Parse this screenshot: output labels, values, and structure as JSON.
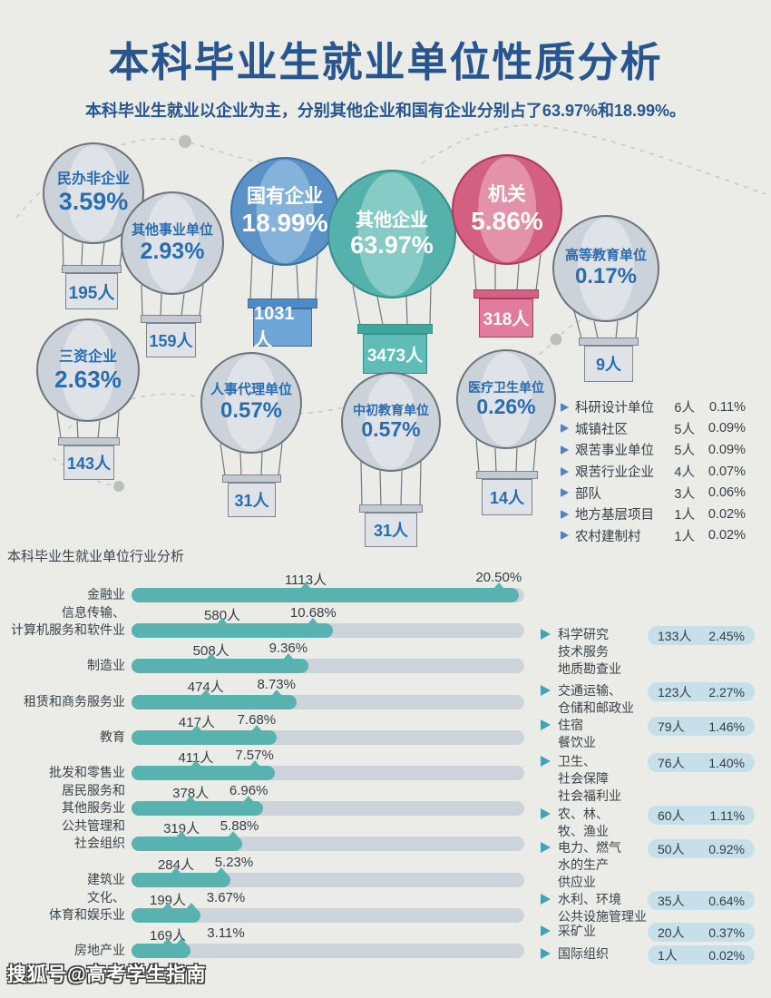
{
  "header": {
    "title": "本科毕业生就业单位性质分析",
    "subtitle": "本科毕业生就业以企业为主，分别其他企业和国有企业分别占了63.97%和18.99%。"
  },
  "balloons": [
    {
      "name": "民办非企业",
      "pct": "3.59%",
      "count": "195人"
    },
    {
      "name": "其他事业单位",
      "pct": "2.93%",
      "count": "159人"
    },
    {
      "name": "国有企业",
      "pct": "18.99%",
      "count": "1031人"
    },
    {
      "name": "其他企业",
      "pct": "63.97%",
      "count": "3473人"
    },
    {
      "name": "机关",
      "pct": "5.86%",
      "count": "318人"
    },
    {
      "name": "高等教育单位",
      "pct": "0.17%",
      "count": "9人"
    },
    {
      "name": "三资企业",
      "pct": "2.63%",
      "count": "143人"
    },
    {
      "name": "人事代理单位",
      "pct": "0.57%",
      "count": "31人"
    },
    {
      "name": "中初教育单位",
      "pct": "0.57%",
      "count": "31人"
    },
    {
      "name": "医疗卫生单位",
      "pct": "0.26%",
      "count": "14人"
    }
  ],
  "stats_list": [
    {
      "label": "科研设计单位",
      "count": "6人",
      "pct": "0.11%"
    },
    {
      "label": "城镇社区",
      "count": "5人",
      "pct": "0.09%"
    },
    {
      "label": "艰苦事业单位",
      "count": "5人",
      "pct": "0.09%"
    },
    {
      "label": "艰苦行业企业",
      "count": "4人",
      "pct": "0.07%"
    },
    {
      "label": "部队",
      "count": "3人",
      "pct": "0.06%"
    },
    {
      "label": "地方基层项目",
      "count": "1人",
      "pct": "0.02%"
    },
    {
      "label": "农村建制村",
      "count": "1人",
      "pct": "0.02%"
    }
  ],
  "industry_chart": {
    "section_title": "本科毕业生就业单位行业分析",
    "bars": [
      {
        "label": "金融业",
        "count": "1113人",
        "pct": "20.50%",
        "pct_num": 20.5
      },
      {
        "label": "信息传输、\n计算机服务和软件业",
        "count": "580人",
        "pct": "10.68%",
        "pct_num": 10.68
      },
      {
        "label": "制造业",
        "count": "508人",
        "pct": "9.36%",
        "pct_num": 9.36
      },
      {
        "label": "租赁和商务服务业",
        "count": "474人",
        "pct": "8.73%",
        "pct_num": 8.73
      },
      {
        "label": "教育",
        "count": "417人",
        "pct": "7.68%",
        "pct_num": 7.68
      },
      {
        "label": "批发和零售业",
        "count": "411人",
        "pct": "7.57%",
        "pct_num": 7.57
      },
      {
        "label": "居民服务和\n其他服务业",
        "count": "378人",
        "pct": "6.96%",
        "pct_num": 6.96
      },
      {
        "label": "公共管理和\n社会组织",
        "count": "319人",
        "pct": "5.88%",
        "pct_num": 5.88
      },
      {
        "label": "建筑业",
        "count": "284人",
        "pct": "5.23%",
        "pct_num": 5.23
      },
      {
        "label": "文化、\n体育和娱乐业",
        "count": "199人",
        "pct": "3.67%",
        "pct_num": 3.67
      },
      {
        "label": "房地产业",
        "count": "169人",
        "pct": "3.11%",
        "pct_num": 3.11
      }
    ],
    "side_items": [
      {
        "label": "科学研究\n技术服务\n地质勘查业",
        "count": "133人",
        "pct": "2.45%"
      },
      {
        "label": "交通运输、\n仓储和邮政业",
        "count": "123人",
        "pct": "2.27%"
      },
      {
        "label": "住宿\n餐饮业",
        "count": "79人",
        "pct": "1.46%"
      },
      {
        "label": "卫生、\n社会保障\n社会福利业",
        "count": "76人",
        "pct": "1.40%"
      },
      {
        "label": "农、林、\n牧、渔业",
        "count": "60人",
        "pct": "1.11%"
      },
      {
        "label": "电力、燃气\n水的生产\n供应业",
        "count": "50人",
        "pct": "0.92%"
      },
      {
        "label": "水利、环境\n公共设施管理业",
        "count": "35人",
        "pct": "0.64%"
      },
      {
        "label": "采矿业",
        "count": "20人",
        "pct": "0.37%"
      },
      {
        "label": "国际组织",
        "count": "1人",
        "pct": "0.02%"
      }
    ]
  },
  "watermark": "搜狐号@高考学生指南",
  "colors": {
    "page_bg": "#ebece8",
    "title_navy": "#27558f",
    "balloon_text_blue": "#2a6cb0",
    "balloon_gray": "#ccd2da",
    "balloon_blue": "#5a92c8",
    "balloon_teal": "#55b1ac",
    "balloon_pink": "#d35f82",
    "bar_fill_teal": "#58b3b0",
    "bar_track_gray": "#cdd3da",
    "pill_blue": "#c6dfe9",
    "list_bullet_blue": "#4e83c4",
    "side_arrow_teal": "#46a2b0"
  },
  "chart_data": [
    {
      "type": "pie",
      "title": "本科毕业生就业单位性质分析",
      "categories": [
        "民办非企业",
        "其他事业单位",
        "国有企业",
        "其他企业",
        "机关",
        "高等教育单位",
        "三资企业",
        "人事代理单位",
        "中初教育单位",
        "医疗卫生单位",
        "科研设计单位",
        "城镇社区",
        "艰苦事业单位",
        "艰苦行业企业",
        "部队",
        "地方基层项目",
        "农村建制村"
      ],
      "values": [
        3.59,
        2.93,
        18.99,
        63.97,
        5.86,
        0.17,
        2.63,
        0.57,
        0.57,
        0.26,
        0.11,
        0.09,
        0.09,
        0.07,
        0.06,
        0.02,
        0.02
      ],
      "counts": [
        195,
        159,
        1031,
        3473,
        318,
        9,
        143,
        31,
        31,
        14,
        6,
        5,
        5,
        4,
        3,
        1,
        1
      ],
      "unit": "人",
      "value_unit": "%"
    },
    {
      "type": "bar",
      "orientation": "horizontal",
      "title": "本科毕业生就业单位行业分析",
      "categories": [
        "金融业",
        "信息传输、计算机服务和软件业",
        "制造业",
        "租赁和商务服务业",
        "教育",
        "批发和零售业",
        "居民服务和其他服务业",
        "公共管理和社会组织",
        "建筑业",
        "文化、体育和娱乐业",
        "房地产业",
        "科学研究技术服务地质勘查业",
        "交通运输、仓储和邮政业",
        "住宿餐饮业",
        "卫生、社会保障社会福利业",
        "农、林、牧、渔业",
        "电力、燃气水的生产供应业",
        "水利、环境公共设施管理业",
        "采矿业",
        "国际组织"
      ],
      "values": [
        20.5,
        10.68,
        9.36,
        8.73,
        7.68,
        7.57,
        6.96,
        5.88,
        5.23,
        3.67,
        3.11,
        2.45,
        2.27,
        1.46,
        1.4,
        1.11,
        0.92,
        0.64,
        0.37,
        0.02
      ],
      "counts": [
        1113,
        580,
        508,
        474,
        417,
        411,
        378,
        319,
        284,
        199,
        169,
        133,
        123,
        79,
        76,
        60,
        50,
        35,
        20,
        1
      ],
      "xlim": [
        0,
        20.9
      ],
      "grid": false,
      "legend": "none"
    }
  ]
}
